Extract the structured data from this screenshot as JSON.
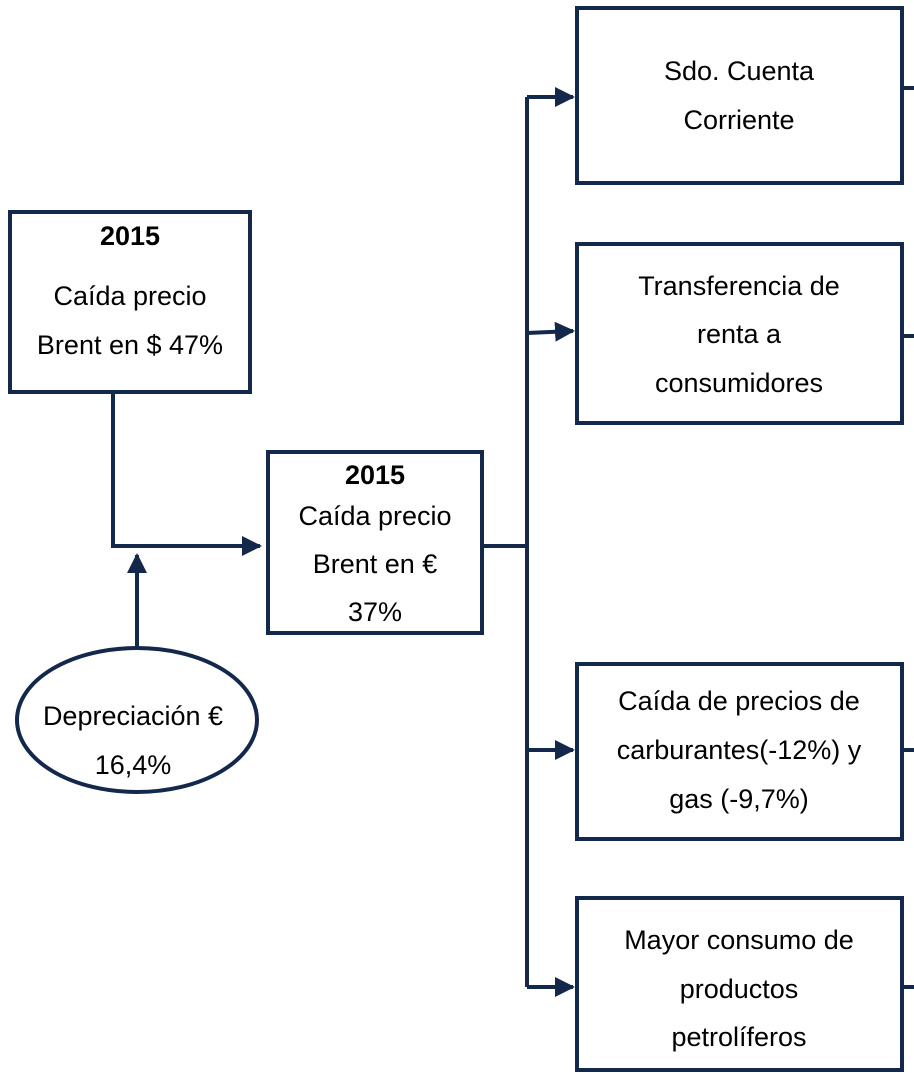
{
  "nodes": [
    {
      "title": "2015",
      "lines": [
        "Caída precio",
        "Brent en $ 47%"
      ]
    },
    {
      "lines": [
        "Depreciación €",
        "16,4%"
      ]
    },
    {
      "title": "2015",
      "lines": [
        "Caída precio",
        "Brent en €",
        "37%"
      ]
    },
    {
      "lines": [
        "Sdo. Cuenta",
        "Corriente"
      ]
    },
    {
      "lines": [
        "Transferencia de",
        "renta a",
        "consumidores"
      ]
    },
    {
      "lines": [
        "Caída de precios de",
        "carburantes(-12%) y",
        "gas (-9,7%)"
      ]
    },
    {
      "lines": [
        "Mayor consumo de",
        "productos",
        "petrolíferos"
      ]
    }
  ]
}
